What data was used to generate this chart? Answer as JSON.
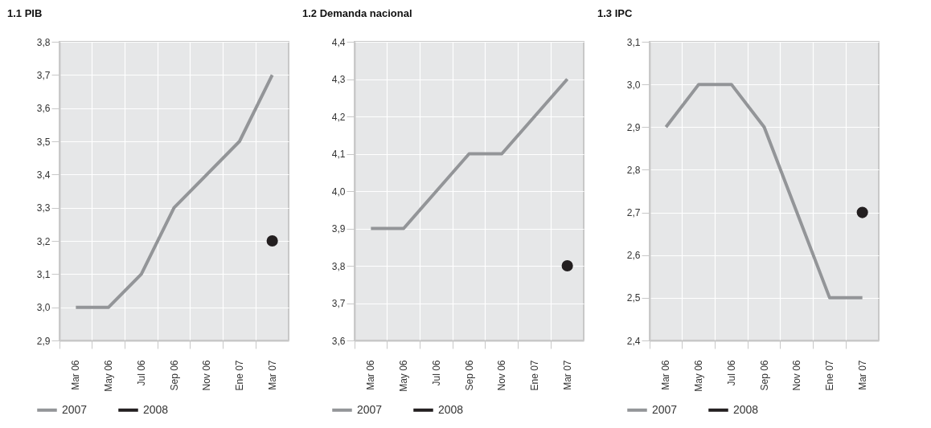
{
  "chart_data": [
    {
      "type": "line",
      "title": "1.1 PIB",
      "categories": [
        "Mar 06",
        "May 06",
        "Jul 06",
        "Sep 06",
        "Nov 06",
        "Ene 07",
        "Mar 07"
      ],
      "series": [
        {
          "name": "2007",
          "color": "#939598",
          "marker": "none",
          "values": [
            3.0,
            3.0,
            3.1,
            3.3,
            3.4,
            3.5,
            3.7
          ]
        },
        {
          "name": "2008",
          "color": "#231f20",
          "marker": "circle",
          "values": [
            null,
            null,
            null,
            null,
            null,
            null,
            3.2
          ]
        }
      ],
      "ylim": [
        2.9,
        3.8
      ],
      "yticks": [
        {
          "value": 2.9,
          "label": "2,9"
        },
        {
          "value": 3.0,
          "label": "3,0"
        },
        {
          "value": 3.1,
          "label": "3,1"
        },
        {
          "value": 3.2,
          "label": "3,2"
        },
        {
          "value": 3.3,
          "label": "3,3"
        },
        {
          "value": 3.4,
          "label": "3,4"
        },
        {
          "value": 3.5,
          "label": "3,5"
        },
        {
          "value": 3.6,
          "label": "3,6"
        },
        {
          "value": 3.7,
          "label": "3,7"
        },
        {
          "value": 3.8,
          "label": "3,8"
        }
      ],
      "grid": true,
      "legend": "bottom left",
      "line_style": "solid"
    },
    {
      "type": "line",
      "title": "1.2 Demanda nacional",
      "categories": [
        "Mar 06",
        "May 06",
        "Jul 06",
        "Sep 06",
        "Nov 06",
        "Ene 07",
        "Mar 07"
      ],
      "series": [
        {
          "name": "2007",
          "color": "#939598",
          "marker": "none",
          "values": [
            3.9,
            3.9,
            4.0,
            4.1,
            4.1,
            4.2,
            4.3
          ]
        },
        {
          "name": "2008",
          "color": "#231f20",
          "marker": "circle",
          "values": [
            null,
            null,
            null,
            null,
            null,
            null,
            3.8
          ]
        }
      ],
      "ylim": [
        3.6,
        4.4
      ],
      "yticks": [
        {
          "value": 3.6,
          "label": "3,6"
        },
        {
          "value": 3.7,
          "label": "3,7"
        },
        {
          "value": 3.8,
          "label": "3,8"
        },
        {
          "value": 3.9,
          "label": "3,9"
        },
        {
          "value": 4.0,
          "label": "4,0"
        },
        {
          "value": 4.1,
          "label": "4,1"
        },
        {
          "value": 4.2,
          "label": "4,2"
        },
        {
          "value": 4.3,
          "label": "4,3"
        },
        {
          "value": 4.4,
          "label": "4,4"
        }
      ],
      "grid": true,
      "legend": "bottom left",
      "line_style": "solid"
    },
    {
      "type": "line",
      "title": "1.3 IPC",
      "categories": [
        "Mar 06",
        "May 06",
        "Jul 06",
        "Sep 06",
        "Nov 06",
        "Ene 07",
        "Mar 07"
      ],
      "series": [
        {
          "name": "2007",
          "color": "#939598",
          "marker": "none",
          "values": [
            2.9,
            3.0,
            3.0,
            2.9,
            2.7,
            2.5,
            2.5
          ]
        },
        {
          "name": "2008",
          "color": "#231f20",
          "marker": "circle",
          "values": [
            null,
            null,
            null,
            null,
            null,
            null,
            2.7
          ]
        }
      ],
      "ylim": [
        2.4,
        3.1
      ],
      "yticks": [
        {
          "value": 2.4,
          "label": "2,4"
        },
        {
          "value": 2.5,
          "label": "2,5"
        },
        {
          "value": 2.6,
          "label": "2,6"
        },
        {
          "value": 2.7,
          "label": "2,7"
        },
        {
          "value": 2.8,
          "label": "2,8"
        },
        {
          "value": 2.9,
          "label": "2,9"
        },
        {
          "value": 3.0,
          "label": "3,0"
        },
        {
          "value": 3.1,
          "label": "3,1"
        }
      ],
      "grid": true,
      "legend": "bottom left",
      "line_style": "solid"
    }
  ]
}
